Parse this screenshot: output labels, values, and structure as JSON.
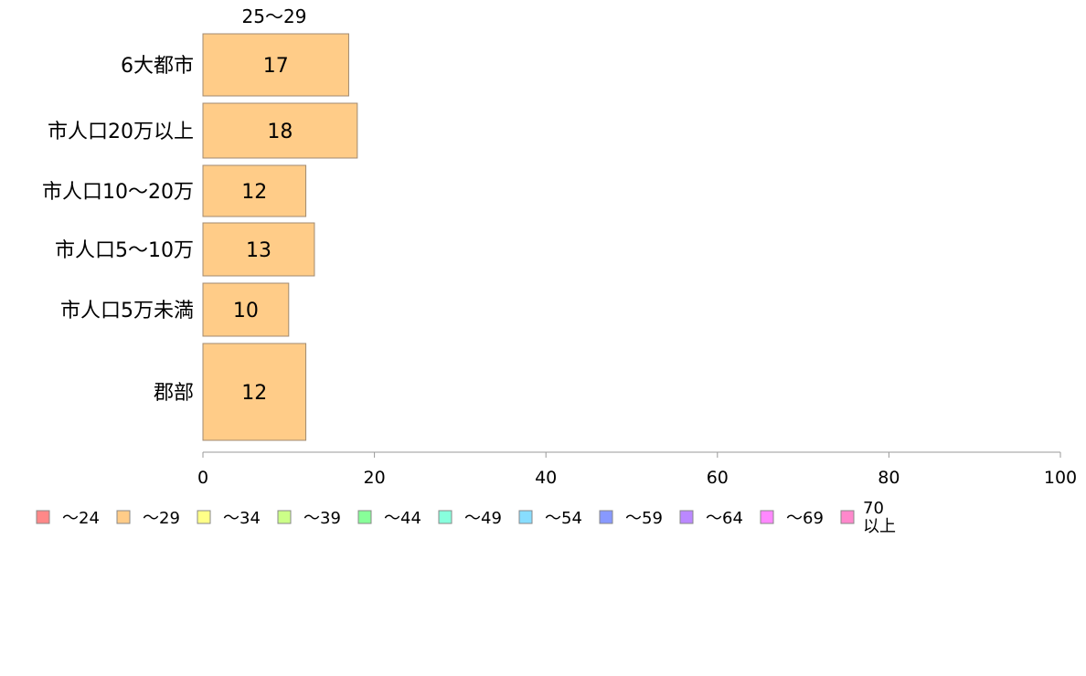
{
  "chart_data": {
    "type": "bar",
    "orientation": "horizontal",
    "stacked": true,
    "series_label": "25〜29",
    "categories": [
      "6大都市",
      "市人口20万以上",
      "市人口10〜20万",
      "市人口5〜10万",
      "市人口5万未満",
      "郡部"
    ],
    "series": [
      {
        "name": "〜29",
        "color": "#ffcc88",
        "values": [
          17,
          18,
          12,
          13,
          10,
          12
        ]
      }
    ],
    "xlim": [
      0,
      100
    ],
    "xticks": [
      0,
      20,
      40,
      60,
      80,
      100
    ],
    "grid": false,
    "legend_position": "bottom-left",
    "legend": [
      {
        "label": "〜24",
        "color": "#ff8888"
      },
      {
        "label": "〜29",
        "color": "#ffcc88"
      },
      {
        "label": "〜34",
        "color": "#ffff88"
      },
      {
        "label": "〜39",
        "color": "#ccff88"
      },
      {
        "label": "〜44",
        "color": "#88ff99"
      },
      {
        "label": "〜49",
        "color": "#88ffdd"
      },
      {
        "label": "〜54",
        "color": "#88ddff"
      },
      {
        "label": "〜59",
        "color": "#8899ff"
      },
      {
        "label": "〜64",
        "color": "#bb88ff"
      },
      {
        "label": "〜69",
        "color": "#ff88ff"
      },
      {
        "label": "70\n以上",
        "color": "#ff88cc"
      }
    ]
  }
}
